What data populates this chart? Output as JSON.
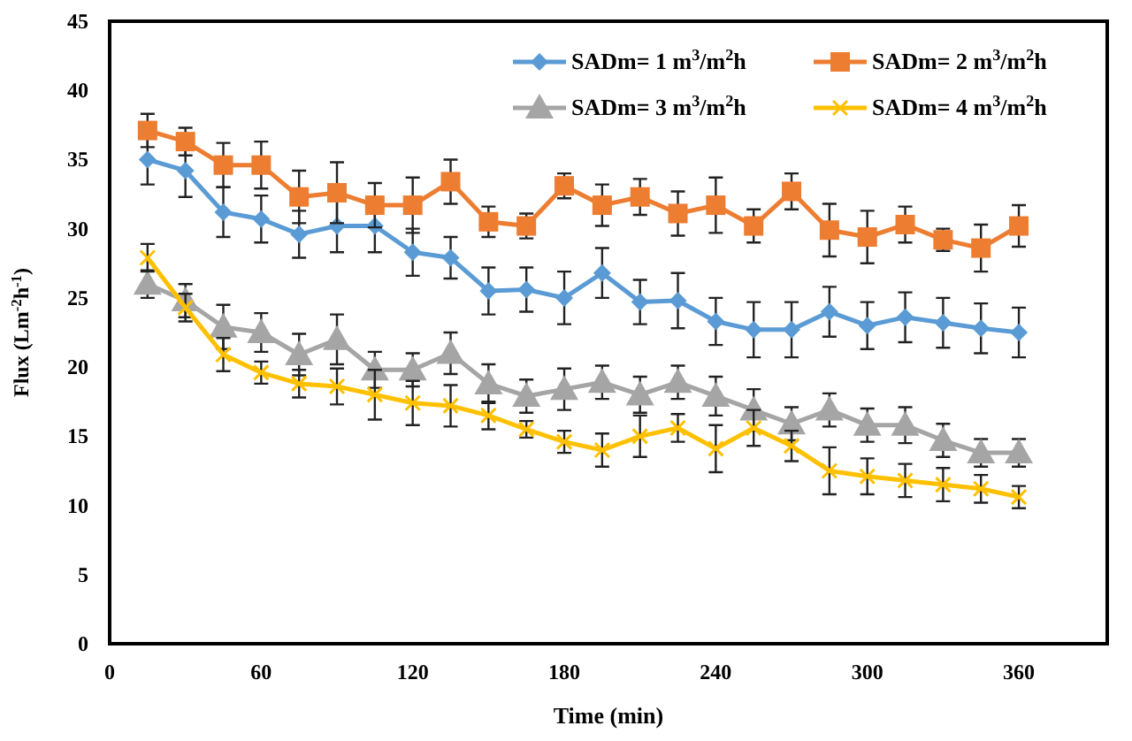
{
  "chart_data": {
    "type": "line",
    "xlabel": "Time (min)",
    "ylabel": "Flux (Lm$^{-2}$h$^{-1}$)",
    "x": [
      15,
      30,
      45,
      60,
      75,
      90,
      105,
      120,
      135,
      150,
      165,
      180,
      195,
      210,
      225,
      240,
      255,
      270,
      285,
      300,
      315,
      330,
      345,
      360
    ],
    "xlim": [
      0,
      395
    ],
    "xticks": [
      0,
      60,
      120,
      180,
      240,
      300,
      360
    ],
    "ylim": [
      0,
      45
    ],
    "yticks": [
      0,
      5,
      10,
      15,
      20,
      25,
      30,
      35,
      40,
      45
    ],
    "grid": false,
    "legend": "top right",
    "line_style": "solid",
    "series": [
      {
        "name": "SADm= 1 m$^{3}$/m$^{2}$h",
        "color": "#5b9bd5",
        "marker": "diamond",
        "values": [
          35,
          34.2,
          31.2,
          30.7,
          29.6,
          30.2,
          30.2,
          28.3,
          27.9,
          25.5,
          25.6,
          25,
          26.8,
          24.7,
          24.8,
          23.3,
          22.7,
          22.7,
          24,
          23,
          23.6,
          23.2,
          22.8,
          22.5
        ],
        "errors": [
          1.8,
          1.9,
          1.8,
          1.7,
          1.7,
          1.9,
          1.9,
          1.7,
          1.5,
          1.7,
          1.6,
          1.9,
          1.8,
          1.6,
          2,
          1.7,
          2,
          2,
          1.8,
          1.7,
          1.8,
          1.8,
          1.8,
          1.8
        ]
      },
      {
        "name": "SADm= 2  m$^{3}$/m$^{2}$h",
        "color": "#ed7d31",
        "marker": "square",
        "values": [
          37.1,
          36.3,
          34.6,
          34.6,
          32.3,
          32.6,
          31.7,
          31.7,
          33.4,
          30.5,
          30.2,
          33.1,
          31.7,
          32.3,
          31.1,
          31.7,
          30.2,
          32.7,
          29.9,
          29.4,
          30.3,
          29.2,
          28.6,
          30.2
        ],
        "errors": [
          1.2,
          1,
          1.6,
          1.7,
          1.9,
          2.2,
          1.6,
          2,
          1.6,
          1.1,
          0.9,
          0.9,
          1.5,
          1.3,
          1.6,
          2,
          1.2,
          1.3,
          1.9,
          1.9,
          1.3,
          0.8,
          1.7,
          1.5
        ]
      },
      {
        "name": "SADm= 3  m$^{3}$/m$^{2}$h",
        "color": "#a5a5a5",
        "marker": "triangle",
        "values": [
          26,
          24.8,
          22.9,
          22.5,
          20.9,
          22,
          19.8,
          19.8,
          21,
          18.8,
          17.9,
          18.4,
          18.9,
          18,
          18.9,
          17.9,
          16.9,
          15.9,
          16.9,
          15.8,
          15.8,
          14.7,
          13.8,
          13.8
        ],
        "errors": [
          1,
          1.2,
          1.6,
          1.4,
          1.5,
          1.8,
          1.3,
          1.2,
          1.5,
          1.4,
          1.2,
          1.5,
          1.2,
          1.3,
          1.2,
          1.4,
          1.5,
          1.2,
          1.2,
          1.2,
          1.3,
          1.2,
          1,
          1
        ]
      },
      {
        "name": "SADm= 4  m$^{3}$/m$^{2}$h",
        "color": "#ffc000",
        "marker": "cross",
        "values": [
          27.9,
          24.3,
          20.9,
          19.6,
          18.8,
          18.6,
          18,
          17.4,
          17.2,
          16.5,
          15.5,
          14.6,
          14,
          15,
          15.6,
          14.1,
          15.6,
          14.3,
          12.5,
          12.1,
          11.8,
          11.5,
          11.2,
          10.6
        ],
        "errors": [
          1,
          1,
          1.2,
          0.8,
          1,
          1.3,
          1.8,
          1.6,
          1.5,
          1,
          0.6,
          0.8,
          1.2,
          1.5,
          1,
          1.7,
          1.3,
          1.1,
          1.7,
          1.3,
          1.2,
          1.2,
          1,
          0.8
        ]
      }
    ]
  }
}
